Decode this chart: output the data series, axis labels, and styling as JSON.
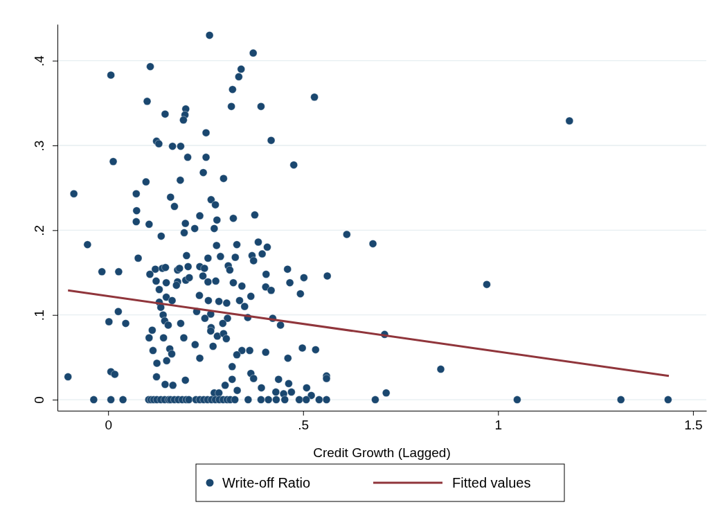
{
  "chart_data": {
    "type": "scatter",
    "xlabel": "Credit Growth (Lagged)",
    "xlim": [
      -0.13,
      1.534
    ],
    "ylim": [
      -0.013,
      0.443
    ],
    "xticks": [
      0,
      {
        "value": 0.5,
        "label": ".5"
      },
      1,
      1.5
    ],
    "yticks": [
      0,
      {
        "value": 0.1,
        "label": ".1"
      },
      {
        "value": 0.2,
        "label": ".2"
      },
      {
        "value": 0.3,
        "label": ".3"
      },
      {
        "value": 0.4,
        "label": ".4"
      }
    ],
    "grid": "y",
    "legend": "bottom",
    "series": [
      {
        "name": "Write-off Ratio",
        "marker": "circle",
        "color": "#1a476f",
        "x": [
          0.26,
          0.108,
          0.007,
          0.1,
          0.146,
          0.199,
          0.197,
          0.193,
          0.251,
          0.124,
          0.13,
          0.165,
          0.186,
          0.204,
          0.251,
          0.013,
          0.244,
          0.185,
          0.296,
          0.097,
          -0.088,
          0.072,
          0.16,
          0.17,
          0.264,
          0.275,
          0.073,
          0.235,
          0.372,
          0.341,
          0.335,
          0.319,
          0.316,
          0.392,
          0.529,
          0.418,
          0.476,
          0.376,
          0.321,
          0.279,
          0.072,
          0.105,
          0.198,
          0.222,
          0.195,
          0.272,
          0.136,
          -0.053,
          0.278,
          0.201,
          0.288,
          0.256,
          0.077,
          -0.016,
          0.027,
          0.107,
          0.121,
          0.139,
          0.147,
          0.178,
          0.183,
          0.205,
          0.235,
          0.247,
          0.308,
          0.199,
          0.208,
          0.243,
          0.123,
          0.149,
          0.178,
          0.175,
          0.256,
          0.276,
          0.131,
          0.149,
          0.164,
          0.234,
          0.257,
          0.284,
          0.304,
          0.131,
          0.135,
          0.026,
          0.227,
          0.263,
          0.306,
          0.141,
          0.248,
          0.002,
          0.045,
          0.145,
          0.154,
          0.186,
          0.294,
          0.264,
          0.263,
          0.113,
          0.28,
          0.296,
          0.303,
          0.105,
          0.142,
          0.194,
          0.223,
          0.269,
          0.115,
          0.158,
          0.163,
          0.235,
          0.15,
          0.125,
          0.007,
          0.017,
          -0.103,
          0.124,
          0.146,
          0.166,
          0.198,
          0.3,
          0.272,
          0.284,
          0.612,
          0.679,
          0.385,
          0.408,
          0.33,
          0.326,
          0.369,
          0.373,
          0.395,
          0.312,
          0.46,
          0.502,
          0.562,
          0.405,
          0.466,
          0.321,
          0.343,
          0.404,
          0.418,
          0.493,
          0.366,
          0.337,
          0.35,
          0.358,
          0.422,
          0.442,
          0.709,
          0.498,
          0.532,
          0.343,
          0.363,
          0.33,
          0.404,
          0.461,
          0.318,
          0.366,
          0.373,
          0.318,
          0.437,
          0.56,
          0.56,
          0.463,
          0.393,
          0.331,
          0.43,
          0.47,
          0.509,
          0.521,
          0.45,
          0.713,
          1.183,
          0.971,
          0.853,
          -0.037,
          0.007,
          0.038,
          0.104,
          0.11,
          0.117,
          0.125,
          0.135,
          0.145,
          0.155,
          0.16,
          0.17,
          0.18,
          0.19,
          0.2,
          0.207,
          0.225,
          0.235,
          0.245,
          0.255,
          0.265,
          0.275,
          0.285,
          0.295,
          0.305,
          0.313,
          0.325,
          0.359,
          0.392,
          0.411,
          0.431,
          0.453,
          0.49,
          0.508,
          0.541,
          0.56,
          0.685,
          1.049,
          1.315,
          1.436
        ],
        "values": [
          0.43,
          0.393,
          0.383,
          0.352,
          0.337,
          0.343,
          0.336,
          0.33,
          0.315,
          0.305,
          0.302,
          0.299,
          0.299,
          0.286,
          0.286,
          0.281,
          0.268,
          0.259,
          0.261,
          0.257,
          0.243,
          0.243,
          0.239,
          0.228,
          0.236,
          0.23,
          0.223,
          0.217,
          0.409,
          0.39,
          0.381,
          0.366,
          0.346,
          0.346,
          0.357,
          0.306,
          0.277,
          0.218,
          0.214,
          0.212,
          0.21,
          0.207,
          0.208,
          0.202,
          0.197,
          0.202,
          0.193,
          0.183,
          0.182,
          0.17,
          0.169,
          0.167,
          0.167,
          0.151,
          0.151,
          0.148,
          0.154,
          0.155,
          0.156,
          0.153,
          0.155,
          0.157,
          0.157,
          0.155,
          0.158,
          0.141,
          0.144,
          0.146,
          0.14,
          0.138,
          0.139,
          0.135,
          0.139,
          0.14,
          0.13,
          0.121,
          0.117,
          0.123,
          0.117,
          0.116,
          0.114,
          0.115,
          0.109,
          0.104,
          0.104,
          0.101,
          0.096,
          0.1,
          0.096,
          0.092,
          0.09,
          0.093,
          0.088,
          0.09,
          0.09,
          0.085,
          0.081,
          0.082,
          0.075,
          0.078,
          0.072,
          0.073,
          0.073,
          0.073,
          0.065,
          0.063,
          0.058,
          0.06,
          0.054,
          0.049,
          0.046,
          0.043,
          0.033,
          0.03,
          0.027,
          0.027,
          0.018,
          0.017,
          0.023,
          0.017,
          0.008,
          0.008,
          0.195,
          0.184,
          0.186,
          0.18,
          0.183,
          0.168,
          0.17,
          0.164,
          0.172,
          0.153,
          0.154,
          0.144,
          0.146,
          0.148,
          0.138,
          0.138,
          0.134,
          0.133,
          0.129,
          0.125,
          0.122,
          0.117,
          0.11,
          0.097,
          0.096,
          0.088,
          0.077,
          0.061,
          0.059,
          0.058,
          0.058,
          0.053,
          0.056,
          0.049,
          0.039,
          0.031,
          0.025,
          0.024,
          0.024,
          0.028,
          0.025,
          0.019,
          0.014,
          0.011,
          0.009,
          0.009,
          0.014,
          0.005,
          0.007,
          0.008,
          0.329,
          0.136,
          0.036,
          0,
          0,
          0,
          0,
          0,
          0,
          0,
          0,
          0,
          0,
          0,
          0,
          0,
          0,
          0,
          0,
          0,
          0,
          0,
          0,
          0,
          0,
          0,
          0,
          0,
          0,
          0,
          0,
          0,
          0,
          0,
          0,
          0,
          0,
          0,
          0,
          0,
          0,
          0,
          0
        ]
      },
      {
        "name": "Fitted values",
        "type": "line",
        "line_style": "solid",
        "color": "#90353b",
        "x": [
          -0.103,
          1.438
        ],
        "values": [
          0.129,
          0.028
        ]
      }
    ]
  }
}
